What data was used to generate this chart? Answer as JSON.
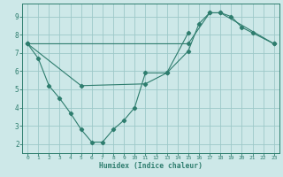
{
  "line1_x": [
    0,
    1,
    2,
    3,
    4,
    5,
    6,
    7,
    8,
    9,
    10,
    11,
    13,
    15
  ],
  "line1_y": [
    7.5,
    6.7,
    5.2,
    4.5,
    3.7,
    2.8,
    2.1,
    2.1,
    2.8,
    3.3,
    4.0,
    5.9,
    5.9,
    8.1
  ],
  "line2_x": [
    0,
    5,
    11,
    13,
    15,
    16,
    17,
    18,
    19,
    20,
    21,
    23
  ],
  "line2_y": [
    7.5,
    5.2,
    5.3,
    5.9,
    7.1,
    8.6,
    9.2,
    9.2,
    9.0,
    8.4,
    8.1,
    7.5
  ],
  "line3_x": [
    0,
    15,
    17,
    18,
    23
  ],
  "line3_y": [
    7.5,
    7.5,
    9.2,
    9.2,
    7.5
  ],
  "color": "#2e7d6e",
  "bg_color": "#cde8e8",
  "grid_color": "#9dc8c8",
  "xlabel": "Humidex (Indice chaleur)",
  "xlim": [
    -0.5,
    23.5
  ],
  "ylim": [
    1.5,
    9.7
  ],
  "yticks": [
    2,
    3,
    4,
    5,
    6,
    7,
    8,
    9
  ],
  "xticks": [
    0,
    1,
    2,
    3,
    4,
    5,
    6,
    7,
    8,
    9,
    10,
    11,
    12,
    13,
    14,
    15,
    16,
    17,
    18,
    19,
    20,
    21,
    22,
    23
  ]
}
